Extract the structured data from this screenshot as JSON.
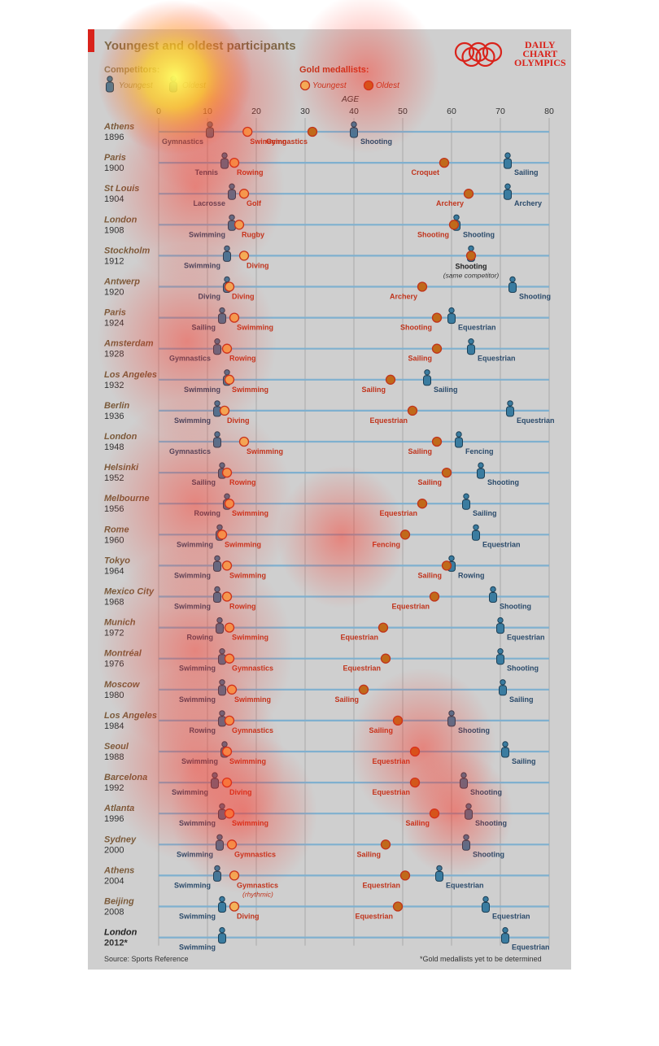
{
  "header": {
    "title": "Youngest and oldest participants",
    "logo_lines": [
      "DAILY",
      "CHART",
      "OLYMPICS"
    ]
  },
  "legend": {
    "competitors_label": "Competitors:",
    "competitors_youngest": "Youngest",
    "competitors_oldest": "Oldest",
    "gold_label": "Gold medallists:",
    "gold_youngest": "Youngest",
    "gold_oldest": "Oldest"
  },
  "footer": {
    "source": "Source: Sports Reference",
    "footnote": "*Gold medallists yet to be determined"
  },
  "colors": {
    "panel": "#cfcfcf",
    "competitor": "#3a7ca0",
    "competitor_dark": "#1c3f55",
    "gold_young_fill": "#f3b35a",
    "gold_old_fill": "#c06a1a",
    "gold_stroke": "#c0341c",
    "gold_label": "#c0341c",
    "comp_label": "#2a4a6a",
    "accent_red": "#d9231b"
  },
  "chart_data": {
    "type": "scatter",
    "axis_label": "AGE",
    "xlim": [
      0,
      80
    ],
    "xticks": [
      0,
      10,
      20,
      30,
      40,
      50,
      60,
      70,
      80
    ],
    "grid": true,
    "games": [
      {
        "city": "Athens",
        "year": "1896",
        "cy": 10.5,
        "cy_sport": "Gymnastics",
        "gy": 18.2,
        "gy_sport": "Swimming",
        "go": 31.5,
        "go_sport": "Gymnastics",
        "co": 40,
        "co_sport": "Shooting"
      },
      {
        "city": "Paris",
        "year": "1900",
        "cy": 13.5,
        "cy_sport": "Tennis",
        "gy": 15.5,
        "gy_sport": "Rowing",
        "go": 58.5,
        "go_sport": "Croquet",
        "co": 71.5,
        "co_sport": "Sailing"
      },
      {
        "city": "St Louis",
        "year": "1904",
        "cy": 15,
        "cy_sport": "Lacrosse",
        "gy": 17.5,
        "gy_sport": "Golf",
        "go": 63.5,
        "go_sport": "Archery",
        "co": 71.5,
        "co_sport": "Archery"
      },
      {
        "city": "London",
        "year": "1908",
        "cy": 15,
        "cy_sport": "Swimming",
        "gy": 16.5,
        "gy_sport": "Rugby",
        "go": 60.5,
        "go_sport": "Shooting",
        "co": 61,
        "co_sport": "Shooting"
      },
      {
        "city": "Stockholm",
        "year": "1912",
        "cy": 14,
        "cy_sport": "Swimming",
        "gy": 17.5,
        "gy_sport": "Diving",
        "go": 64,
        "go_sport": "",
        "co": 64,
        "co_sport": "Shooting",
        "note": "(same competitor)"
      },
      {
        "city": "Antwerp",
        "year": "1920",
        "cy": 14,
        "cy_sport": "Diving",
        "gy": 14.5,
        "gy_sport": "Diving",
        "go": 54,
        "go_sport": "Archery",
        "co": 72.5,
        "co_sport": "Shooting"
      },
      {
        "city": "Paris",
        "year": "1924",
        "cy": 13,
        "cy_sport": "Sailing",
        "gy": 15.5,
        "gy_sport": "Swimming",
        "go": 57,
        "go_sport": "Shooting",
        "co": 60,
        "co_sport": "Equestrian"
      },
      {
        "city": "Amsterdam",
        "year": "1928",
        "cy": 12,
        "cy_sport": "Gymnastics",
        "gy": 14,
        "gy_sport": "Rowing",
        "go": 57,
        "go_sport": "Sailing",
        "co": 64,
        "co_sport": "Equestrian"
      },
      {
        "city": "Los Angeles",
        "year": "1932",
        "cy": 14,
        "cy_sport": "Swimming",
        "gy": 14.5,
        "gy_sport": "Swimming",
        "go": 47.5,
        "go_sport": "Sailing",
        "co": 55,
        "co_sport": "Sailing"
      },
      {
        "city": "Berlin",
        "year": "1936",
        "cy": 12,
        "cy_sport": "Swimming",
        "gy": 13.5,
        "gy_sport": "Diving",
        "go": 52,
        "go_sport": "Equestrian",
        "co": 72,
        "co_sport": "Equestrian"
      },
      {
        "city": "London",
        "year": "1948",
        "cy": 12,
        "cy_sport": "Gymnastics",
        "gy": 17.5,
        "gy_sport": "Swimming",
        "go": 57,
        "go_sport": "Sailing",
        "co": 61.5,
        "co_sport": "Fencing"
      },
      {
        "city": "Helsinki",
        "year": "1952",
        "cy": 13,
        "cy_sport": "Sailing",
        "gy": 14,
        "gy_sport": "Rowing",
        "go": 59,
        "go_sport": "Sailing",
        "co": 66,
        "co_sport": "Shooting"
      },
      {
        "city": "Melbourne",
        "year": "1956",
        "cy": 14,
        "cy_sport": "Rowing",
        "gy": 14.5,
        "gy_sport": "Swimming",
        "go": 54,
        "go_sport": "Equestrian",
        "co": 63,
        "co_sport": "Sailing"
      },
      {
        "city": "Rome",
        "year": "1960",
        "cy": 12.5,
        "cy_sport": "Swimming",
        "gy": 13,
        "gy_sport": "Swimming",
        "go": 50.5,
        "go_sport": "Fencing",
        "co": 65,
        "co_sport": "Equestrian"
      },
      {
        "city": "Tokyo",
        "year": "1964",
        "cy": 12,
        "cy_sport": "Swimming",
        "gy": 14,
        "gy_sport": "Swimming",
        "go": 59,
        "go_sport": "Sailing",
        "co": 60,
        "co_sport": "Rowing"
      },
      {
        "city": "Mexico City",
        "year": "1968",
        "cy": 12,
        "cy_sport": "Swimming",
        "gy": 14,
        "gy_sport": "Rowing",
        "go": 56.5,
        "go_sport": "Equestrian",
        "co": 68.5,
        "co_sport": "Shooting"
      },
      {
        "city": "Munich",
        "year": "1972",
        "cy": 12.5,
        "cy_sport": "Rowing",
        "gy": 14.5,
        "gy_sport": "Swimming",
        "go": 46,
        "go_sport": "Equestrian",
        "co": 70,
        "co_sport": "Equestrian"
      },
      {
        "city": "Montréal",
        "year": "1976",
        "cy": 13,
        "cy_sport": "Swimming",
        "gy": 14.5,
        "gy_sport": "Gymnastics",
        "go": 46.5,
        "go_sport": "Equestrian",
        "co": 70,
        "co_sport": "Shooting"
      },
      {
        "city": "Moscow",
        "year": "1980",
        "cy": 13,
        "cy_sport": "Swimming",
        "gy": 15,
        "gy_sport": "Swimming",
        "go": 42,
        "go_sport": "Sailing",
        "co": 70.5,
        "co_sport": "Sailing"
      },
      {
        "city": "Los Angeles",
        "year": "1984",
        "cy": 13,
        "cy_sport": "Rowing",
        "gy": 14.5,
        "gy_sport": "Gymnastics",
        "go": 49,
        "go_sport": "Sailing",
        "co": 60,
        "co_sport": "Shooting"
      },
      {
        "city": "Seoul",
        "year": "1988",
        "cy": 13.5,
        "cy_sport": "Swimming",
        "gy": 14,
        "gy_sport": "Swimming",
        "go": 52.5,
        "go_sport": "Equestrian",
        "co": 71,
        "co_sport": "Sailing"
      },
      {
        "city": "Barcelona",
        "year": "1992",
        "cy": 11.5,
        "cy_sport": "Swimming",
        "gy": 14,
        "gy_sport": "Diving",
        "go": 52.5,
        "go_sport": "Equestrian",
        "co": 62.5,
        "co_sport": "Shooting"
      },
      {
        "city": "Atlanta",
        "year": "1996",
        "cy": 13,
        "cy_sport": "Swimming",
        "gy": 14.5,
        "gy_sport": "Swimming",
        "go": 56.5,
        "go_sport": "Sailing",
        "co": 63.5,
        "co_sport": "Shooting"
      },
      {
        "city": "Sydney",
        "year": "2000",
        "cy": 12.5,
        "cy_sport": "Swimming",
        "gy": 15,
        "gy_sport": "Gymnastics",
        "go": 46.5,
        "go_sport": "Sailing",
        "co": 63,
        "co_sport": "Shooting"
      },
      {
        "city": "Athens",
        "year": "2004",
        "cy": 12,
        "cy_sport": "Swimming",
        "gy": 15.5,
        "gy_sport": "Gymnastics",
        "gy_note": "(rhythmic)",
        "go": 50.5,
        "go_sport": "Equestrian",
        "co": 57.5,
        "co_sport": "Equestrian"
      },
      {
        "city": "Beijing",
        "year": "2008",
        "cy": 13,
        "cy_sport": "Swimming",
        "gy": 15.5,
        "gy_sport": "Diving",
        "go": 49,
        "go_sport": "Equestrian",
        "co": 67,
        "co_sport": "Equestrian"
      },
      {
        "city": "London",
        "year": "2012*",
        "cy": 13,
        "cy_sport": "Swimming",
        "co": 71,
        "co_sport": "Equestrian"
      }
    ]
  }
}
